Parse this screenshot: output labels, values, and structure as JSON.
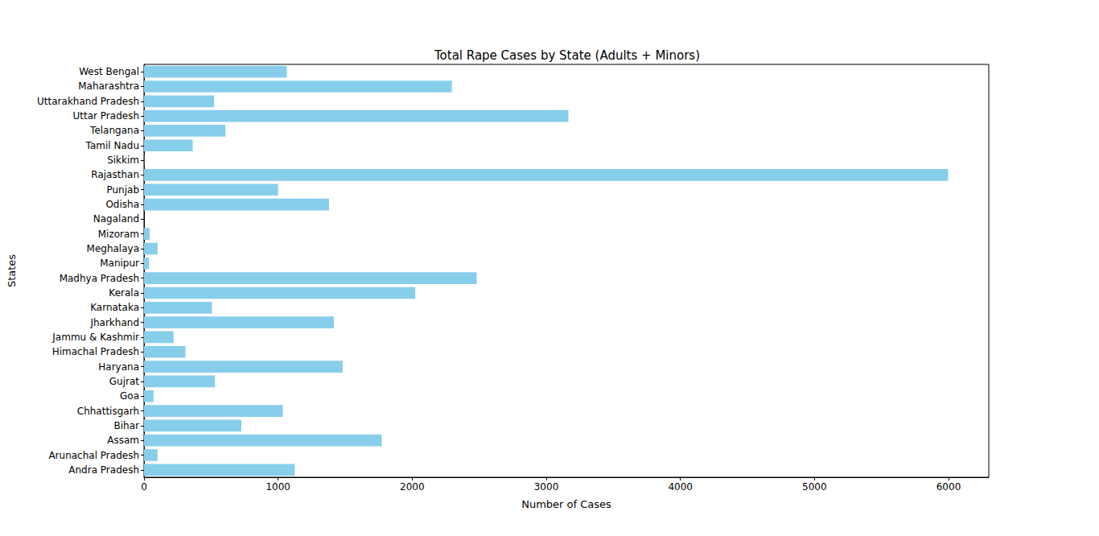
{
  "chart_data": {
    "type": "bar",
    "orientation": "horizontal",
    "title": "Total Rape Cases by State (Adults + Minors)",
    "x_label": "Number of Cases",
    "y_label": "States",
    "categories": [
      "Andra Pradesh",
      "Arunachal Pradesh",
      "Assam",
      "Bihar",
      "Chhattisgarh",
      "Goa",
      "Gujrat",
      "Haryana",
      "Himachal Pradesh",
      "Jammu & Kashmir",
      "Jharkhand",
      "Karnataka",
      "Kerala",
      "Madhya Pradesh",
      "Manipur",
      "Meghalaya",
      "Mizoram",
      "Nagaland",
      "Odisha",
      "Punjab",
      "Rajasthan",
      "Sikkim",
      "Tamil Nadu",
      "Telangana",
      "Uttar Pradesh",
      "Uttarakhand Pradesh",
      "Maharashtra",
      "West Bengal"
    ],
    "values": [
      1124,
      101,
      1773,
      726,
      1035,
      71,
      529,
      1481,
      309,
      220,
      1416,
      506,
      2023,
      2481,
      36,
      101,
      42,
      0,
      1380,
      1000,
      5997,
      2,
      363,
      607,
      3165,
      523,
      2296,
      1065
    ],
    "color": "#87ceeb",
    "xlim": [
      0,
      6300
    ],
    "xticks": [
      0,
      1000,
      2000,
      3000,
      4000,
      5000,
      6000
    ],
    "grid": false
  }
}
